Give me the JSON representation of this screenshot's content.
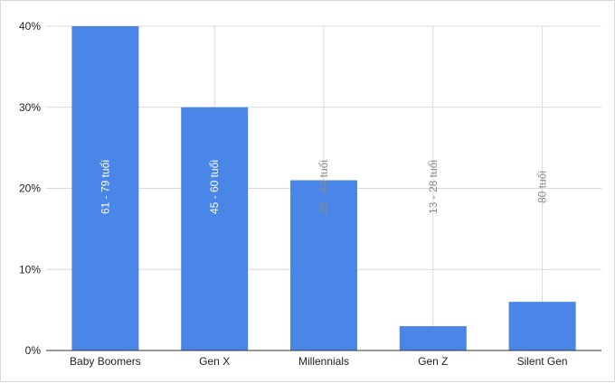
{
  "chart_data": {
    "type": "bar",
    "categories": [
      "Baby Boomers",
      "Gen X",
      "Millennials",
      "Gen Z",
      "Silent Gen"
    ],
    "values": [
      40,
      30,
      21,
      3,
      6
    ],
    "data_labels": [
      "61 - 79 tuổi",
      "45 - 60 tuổi",
      "29 - 44 tuổi",
      "13 - 28 tuổi",
      "80 tuổi"
    ],
    "y_ticks": [
      "0%",
      "10%",
      "20%",
      "30%",
      "40%"
    ],
    "ylim": [
      0,
      40
    ],
    "y_unit": "%",
    "grid": true,
    "legend": "none",
    "title": "",
    "xlabel": "",
    "ylabel": "",
    "colors": {
      "bar": "#4a86e8",
      "grid": "#d9d9d9",
      "axis": "#333333",
      "label_inside": "#ffffff",
      "label_outside": "#8a8a8a"
    }
  }
}
